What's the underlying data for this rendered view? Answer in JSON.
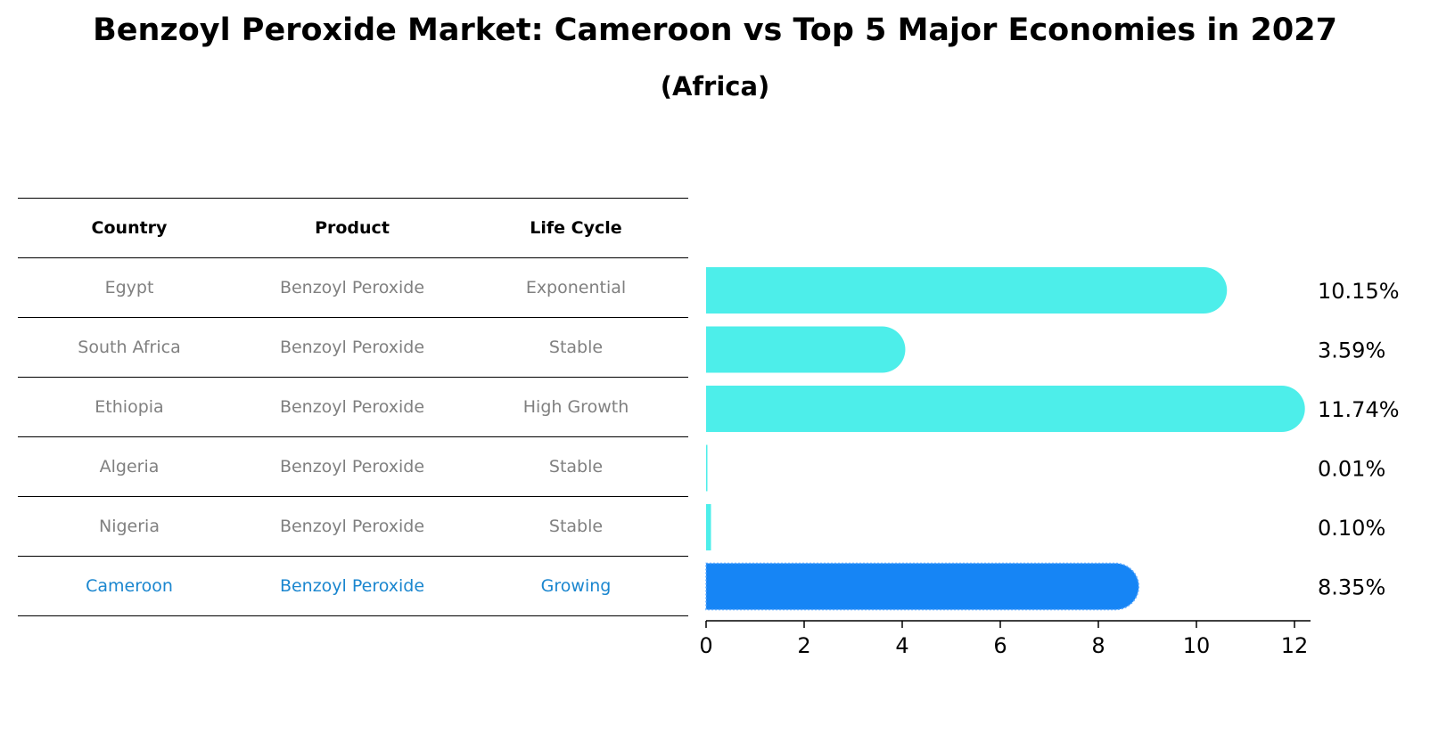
{
  "title": "Benzoyl Peroxide Market: Cameroon vs Top 5 Major Economies in 2027",
  "subtitle": "(Africa)",
  "table": {
    "headers": [
      "Country",
      "Product",
      "Life Cycle"
    ],
    "rows": [
      {
        "country": "Egypt",
        "product": "Benzoyl Peroxide",
        "life_cycle": "Exponential"
      },
      {
        "country": "South Africa",
        "product": "Benzoyl Peroxide",
        "life_cycle": "Stable"
      },
      {
        "country": "Ethiopia",
        "product": "Benzoyl Peroxide",
        "life_cycle": "High Growth"
      },
      {
        "country": "Algeria",
        "product": "Benzoyl Peroxide",
        "life_cycle": "Stable"
      },
      {
        "country": "Nigeria",
        "product": "Benzoyl Peroxide",
        "life_cycle": "Stable"
      },
      {
        "country": "Cameroon",
        "product": "Benzoyl Peroxide",
        "life_cycle": "Growing"
      }
    ]
  },
  "chart_data": {
    "type": "bar",
    "orientation": "horizontal",
    "categories": [
      "Egypt",
      "South Africa",
      "Ethiopia",
      "Algeria",
      "Nigeria",
      "Cameroon"
    ],
    "values": [
      10.15,
      3.59,
      11.74,
      0.01,
      0.1,
      8.35
    ],
    "value_labels": [
      "10.15%",
      "3.59%",
      "11.74%",
      "0.01%",
      "0.10%",
      "8.35%"
    ],
    "highlight_category": "Cameroon",
    "xlim": [
      0,
      12.3
    ],
    "xticks": [
      0,
      2,
      4,
      6,
      8,
      10,
      12
    ],
    "grid": false,
    "colors": {
      "default": "#4deeea",
      "highlight": "#1685f5"
    }
  },
  "colors": {
    "highlight_text": "#1a86cf",
    "muted_text": "#808080"
  }
}
